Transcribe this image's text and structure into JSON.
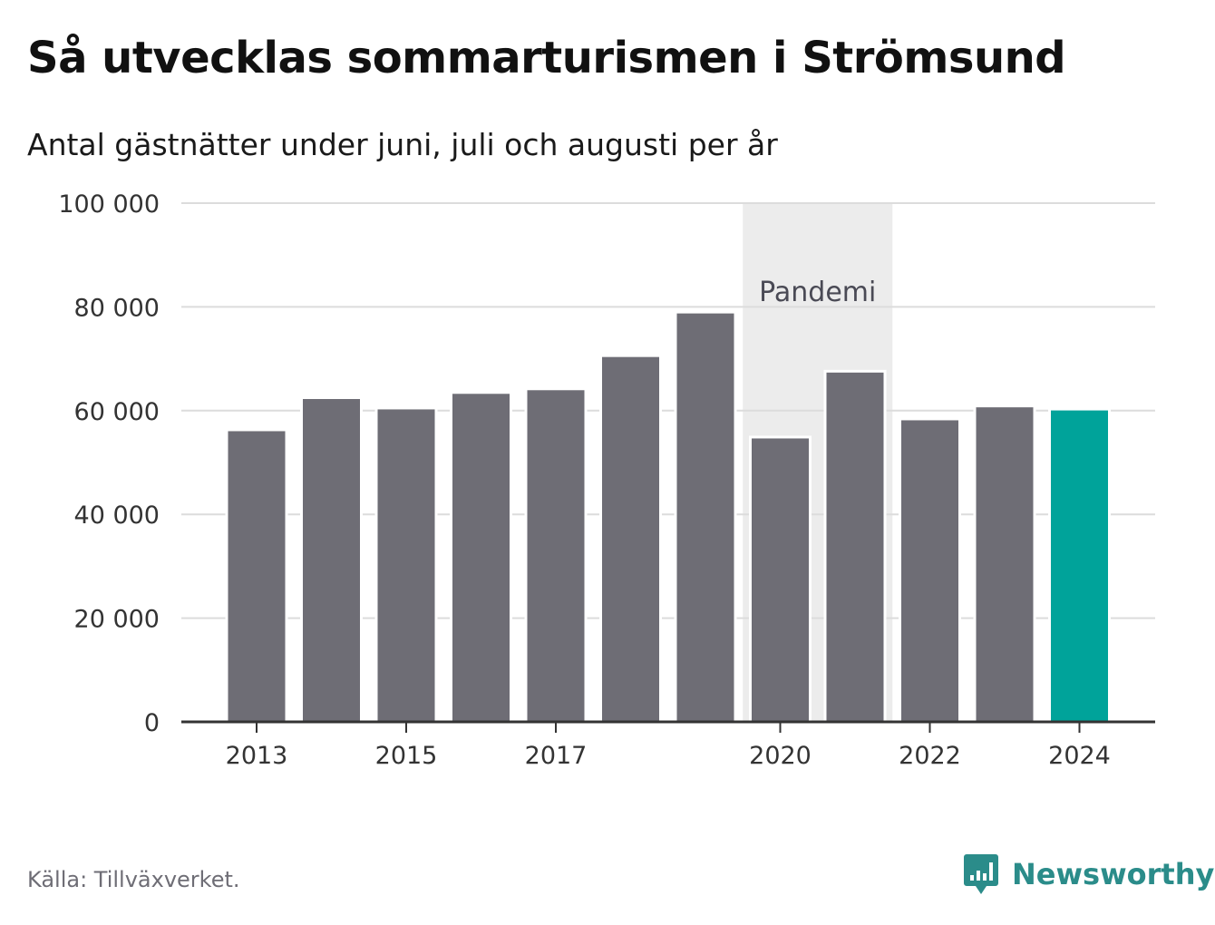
{
  "title": "Så utvecklas sommarturismen i Strömsund",
  "subtitle": "Antal gästnätter under juni, juli och augusti per år",
  "source": "Källa: Tillväxverket.",
  "brand": "Newsworthy",
  "colors": {
    "bar": "#6e6d75",
    "highlight": "#00a39a",
    "band": "#ececec",
    "grid": "#dcdcdc",
    "axis": "#333333",
    "brand": "#2b8c8a"
  },
  "chart_data": {
    "type": "bar",
    "categories": [
      "2013",
      "2014",
      "2015",
      "2016",
      "2017",
      "2018",
      "2019",
      "2020",
      "2021",
      "2022",
      "2023",
      "2024"
    ],
    "values": [
      56300,
      62500,
      60500,
      63500,
      64200,
      70600,
      79000,
      54900,
      67600,
      58400,
      60900,
      60300
    ],
    "highlight_index": 11,
    "x_tick_labels": [
      "2013",
      "2015",
      "2017",
      "2020",
      "2022",
      "2024"
    ],
    "y_ticks": [
      0,
      20000,
      40000,
      60000,
      80000,
      100000
    ],
    "y_tick_labels": [
      "0",
      "20 000",
      "40 000",
      "60 000",
      "80 000",
      "100 000"
    ],
    "ylim": [
      0,
      100000
    ],
    "grid": true,
    "annotation": {
      "text": "Pandemi",
      "from": "2020",
      "to": "2021"
    }
  }
}
